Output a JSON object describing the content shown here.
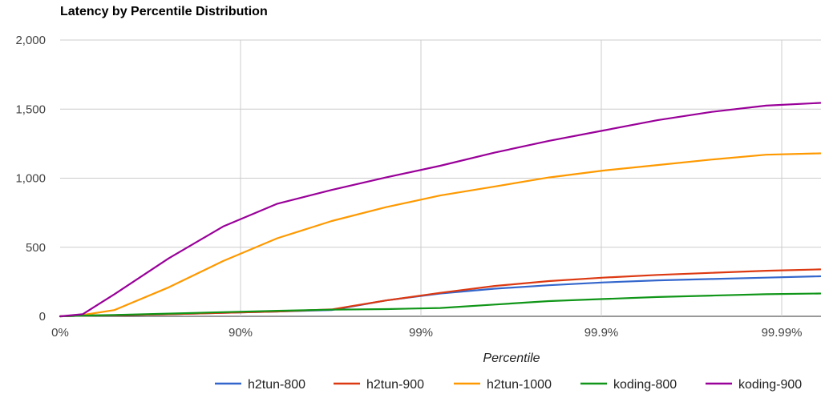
{
  "chart_data": {
    "type": "line",
    "title": "Latency by Percentile Distribution",
    "xlabel": "Percentile",
    "ylabel": "",
    "ylim": [
      0,
      2000
    ],
    "x_scale": "percentile (log of 1/(1-p))",
    "x_ticks": [
      "0%",
      "90%",
      "99%",
      "99.9%",
      "99.99%"
    ],
    "y_ticks": [
      "0",
      "500",
      "1,000",
      "1,500",
      "2,000"
    ],
    "y_tick_values": [
      0,
      500,
      1000,
      1500,
      2000
    ],
    "grid": true,
    "legend_position": "bottom",
    "x": [
      "0%",
      "25%",
      "50%",
      "75%",
      "87.5%",
      "93.75%",
      "96.875%",
      "98.4375%",
      "99.21875%",
      "99.609375%",
      "99.8046875%",
      "99.90234375%",
      "99.951171875%",
      "99.9755859375%",
      "99.98779296875%",
      "99.993896484375%"
    ],
    "series": [
      {
        "name": "h2tun-800",
        "color": "#3366cc",
        "values": [
          0,
          5,
          8,
          15,
          25,
          35,
          45,
          115,
          165,
          200,
          225,
          245,
          260,
          270,
          280,
          290
        ]
      },
      {
        "name": "h2tun-900",
        "color": "#dc3912",
        "values": [
          0,
          5,
          8,
          15,
          25,
          35,
          50,
          115,
          170,
          220,
          255,
          280,
          300,
          315,
          330,
          340
        ]
      },
      {
        "name": "h2tun-1000",
        "color": "#ff9900",
        "values": [
          0,
          10,
          45,
          210,
          400,
          565,
          690,
          790,
          875,
          940,
          1005,
          1055,
          1095,
          1135,
          1170,
          1180
        ]
      },
      {
        "name": "koding-800",
        "color": "#109618",
        "values": [
          0,
          5,
          10,
          20,
          30,
          40,
          48,
          52,
          60,
          85,
          110,
          125,
          140,
          150,
          160,
          165
        ]
      },
      {
        "name": "koding-900",
        "color": "#990099",
        "values": [
          0,
          15,
          160,
          420,
          650,
          815,
          915,
          1005,
          1090,
          1185,
          1270,
          1345,
          1420,
          1480,
          1525,
          1545
        ]
      }
    ]
  }
}
